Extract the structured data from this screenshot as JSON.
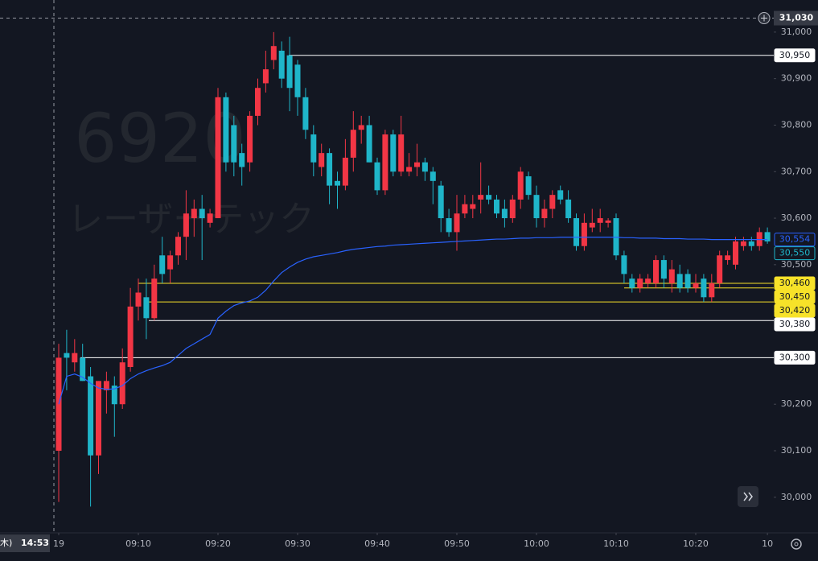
{
  "chart_data": {
    "type": "candlestick",
    "watermark": {
      "symbol": "6920",
      "name": "レーザーテック"
    },
    "up_color": "#f23645",
    "down_color": "#1fb5c9",
    "candles": [
      [
        30100,
        30330,
        29990,
        30300
      ],
      [
        30310,
        30360,
        30230,
        30300
      ],
      [
        30290,
        30340,
        30270,
        30310
      ],
      [
        30300,
        30330,
        30250,
        30250
      ],
      [
        30260,
        30280,
        29980,
        30090
      ],
      [
        30090,
        30250,
        30050,
        30250
      ],
      [
        30230,
        30270,
        30180,
        30250
      ],
      [
        30240,
        30260,
        30130,
        30200
      ],
      [
        30200,
        30320,
        30190,
        30290
      ],
      [
        30280,
        30450,
        30270,
        30410
      ],
      [
        30410,
        30470,
        30380,
        30440
      ],
      [
        30430,
        30470,
        30340,
        30385
      ],
      [
        30385,
        30500,
        30380,
        30470
      ],
      [
        30520,
        30560,
        30460,
        30480
      ],
      [
        30490,
        30530,
        30460,
        30520
      ],
      [
        30520,
        30570,
        30500,
        30560
      ],
      [
        30560,
        30660,
        30510,
        30610
      ],
      [
        30600,
        30640,
        30560,
        30620
      ],
      [
        30620,
        30650,
        30510,
        30600
      ],
      [
        30590,
        30620,
        30580,
        30610
      ],
      [
        30600,
        30880,
        30600,
        30860
      ],
      [
        30860,
        30870,
        30700,
        30720
      ],
      [
        30800,
        30820,
        30690,
        30720
      ],
      [
        30740,
        30760,
        30670,
        30710
      ],
      [
        30720,
        30830,
        30700,
        30820
      ],
      [
        30820,
        30900,
        30800,
        30880
      ],
      [
        30890,
        30960,
        30870,
        30920
      ],
      [
        30940,
        31000,
        30920,
        30970
      ],
      [
        30960,
        30980,
        30880,
        30900
      ],
      [
        30950,
        30990,
        30830,
        30880
      ],
      [
        30930,
        30940,
        30820,
        30860
      ],
      [
        30860,
        30880,
        30770,
        30790
      ],
      [
        30780,
        30800,
        30690,
        30720
      ],
      [
        30710,
        30760,
        30690,
        30740
      ],
      [
        30740,
        30750,
        30630,
        30670
      ],
      [
        30680,
        30700,
        30620,
        30670
      ],
      [
        30670,
        30770,
        30660,
        30730
      ],
      [
        30730,
        30830,
        30700,
        30790
      ],
      [
        30790,
        30820,
        30760,
        30800
      ],
      [
        30800,
        30820,
        30720,
        30720
      ],
      [
        30720,
        30730,
        30650,
        30660
      ],
      [
        30660,
        30790,
        30650,
        30780
      ],
      [
        30780,
        30790,
        30690,
        30700
      ],
      [
        30700,
        30820,
        30690,
        30780
      ],
      [
        30700,
        30740,
        30690,
        30710
      ],
      [
        30710,
        30760,
        30690,
        30720
      ],
      [
        30720,
        30730,
        30680,
        30700
      ],
      [
        30700,
        30710,
        30630,
        30680
      ],
      [
        30670,
        30680,
        30570,
        30600
      ],
      [
        30600,
        30620,
        30560,
        30570
      ],
      [
        30570,
        30650,
        30530,
        30610
      ],
      [
        30610,
        30650,
        30600,
        30630
      ],
      [
        30620,
        30650,
        30600,
        30630
      ],
      [
        30640,
        30720,
        30610,
        30650
      ],
      [
        30650,
        30670,
        30630,
        30640
      ],
      [
        30640,
        30650,
        30600,
        30610
      ],
      [
        30620,
        30640,
        30580,
        30600
      ],
      [
        30600,
        30650,
        30590,
        30640
      ],
      [
        30640,
        30710,
        30620,
        30700
      ],
      [
        30690,
        30700,
        30640,
        30650
      ],
      [
        30650,
        30670,
        30580,
        30600
      ],
      [
        30600,
        30640,
        30580,
        30620
      ],
      [
        30620,
        30660,
        30600,
        30650
      ],
      [
        30660,
        30670,
        30630,
        30640
      ],
      [
        30640,
        30660,
        30590,
        30600
      ],
      [
        30600,
        30610,
        30530,
        30540
      ],
      [
        30540,
        30610,
        30530,
        30590
      ],
      [
        30580,
        30620,
        30570,
        30590
      ],
      [
        30590,
        30620,
        30570,
        30600
      ],
      [
        30590,
        30600,
        30580,
        30595
      ],
      [
        30600,
        30610,
        30510,
        30520
      ],
      [
        30520,
        30530,
        30460,
        30480
      ],
      [
        30470,
        30480,
        30440,
        30450
      ],
      [
        30450,
        30480,
        30440,
        30470
      ],
      [
        30460,
        30480,
        30450,
        30470
      ],
      [
        30460,
        30520,
        30450,
        30510
      ],
      [
        30510,
        30520,
        30450,
        30470
      ],
      [
        30460,
        30510,
        30440,
        30490
      ],
      [
        30480,
        30500,
        30440,
        30450
      ],
      [
        30480,
        30490,
        30440,
        30450
      ],
      [
        30450,
        30480,
        30440,
        30460
      ],
      [
        30470,
        30480,
        30420,
        30430
      ],
      [
        30430,
        30480,
        30420,
        30460
      ],
      [
        30460,
        30530,
        30450,
        30520
      ],
      [
        30510,
        30530,
        30500,
        30520
      ],
      [
        30500,
        30560,
        30490,
        30550
      ],
      [
        30540,
        30560,
        30530,
        30550
      ],
      [
        30550,
        30560,
        30530,
        30540
      ],
      [
        30540,
        30580,
        30530,
        30570
      ],
      [
        30570,
        30580,
        30545,
        30550
      ]
    ],
    "last_label": "30,550",
    "vwap": {
      "color": "#2962ff",
      "last_label": "30,554",
      "values": [
        30200,
        30260,
        30265,
        30258,
        30245,
        30235,
        30232,
        30233,
        30240,
        30255,
        30265,
        30272,
        30278,
        30283,
        30290,
        30305,
        30320,
        30330,
        30340,
        30350,
        30385,
        30400,
        30412,
        30418,
        30422,
        30430,
        30445,
        30465,
        30483,
        30495,
        30505,
        30512,
        30517,
        30520,
        30523,
        30526,
        30530,
        30533,
        30535,
        30537,
        30539,
        30540,
        30542,
        30543,
        30544,
        30545,
        30546,
        30547,
        30548,
        30549,
        30550,
        30551,
        30552,
        30553,
        30554,
        30555,
        30555,
        30556,
        30557,
        30557,
        30558,
        30558,
        30558,
        30559,
        30559,
        30559,
        30559,
        30559,
        30559,
        30559,
        30559,
        30558,
        30558,
        30557,
        30557,
        30557,
        30556,
        30556,
        30556,
        30555,
        30555,
        30555,
        30554,
        30554,
        30554,
        30554,
        30554,
        30554,
        30554,
        30554
      ]
    },
    "price_lines": [
      {
        "value": 30950,
        "label": "30,950",
        "color": "#ffffff"
      },
      {
        "value": 30460,
        "label": "30,460",
        "color": "#f7e229"
      },
      {
        "value": 30450,
        "label": "30,450",
        "color": "#f7e229"
      },
      {
        "value": 30420,
        "label": "30,420",
        "color": "#f7e229"
      },
      {
        "value": 30380,
        "label": "30,380",
        "color": "#ffffff"
      },
      {
        "value": 30300,
        "label": "30,300",
        "color": "#ffffff"
      }
    ],
    "ylim": [
      29927,
      31069
    ],
    "yticks": [
      {
        "value": 31000,
        "label": "31,000"
      },
      {
        "value": 30900,
        "label": "30,900"
      },
      {
        "value": 30800,
        "label": "30,800"
      },
      {
        "value": 30700,
        "label": "30,700"
      },
      {
        "value": 30600,
        "label": "30,600"
      },
      {
        "value": 30500,
        "label": "30,500"
      },
      {
        "value": 30400,
        "label": "30,400"
      },
      {
        "value": 30300,
        "label": "30,300"
      },
      {
        "value": 30200,
        "label": "30,200"
      },
      {
        "value": 30100,
        "label": "30,100"
      },
      {
        "value": 30000,
        "label": "30,000"
      }
    ],
    "xticks": [
      {
        "value": 0,
        "label": "19"
      },
      {
        "value": 10,
        "label": "09:10"
      },
      {
        "value": 20,
        "label": "09:20"
      },
      {
        "value": 30,
        "label": "09:30"
      },
      {
        "value": 40,
        "label": "09:40"
      },
      {
        "value": 50,
        "label": "09:50"
      },
      {
        "value": 60,
        "label": "10:00"
      },
      {
        "value": 70,
        "label": "10:10"
      },
      {
        "value": 80,
        "label": "10:20"
      },
      {
        "value": 89,
        "label": "10"
      }
    ],
    "crosshair": {
      "price": 31030,
      "price_label": "31,030",
      "day_label": "木)",
      "time_label": "14:53"
    }
  }
}
